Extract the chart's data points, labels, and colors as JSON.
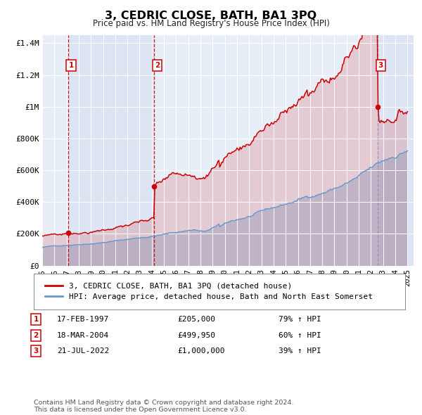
{
  "title": "3, CEDRIC CLOSE, BATH, BA1 3PQ",
  "subtitle": "Price paid vs. HM Land Registry's House Price Index (HPI)",
  "xlim": [
    1995.0,
    2025.5
  ],
  "ylim": [
    0,
    1450000
  ],
  "yticks": [
    0,
    200000,
    400000,
    600000,
    800000,
    1000000,
    1200000,
    1400000
  ],
  "ytick_labels": [
    "£0",
    "£200K",
    "£400K",
    "£600K",
    "£800K",
    "£1M",
    "£1.2M",
    "£1.4M"
  ],
  "purchases": [
    {
      "num": 1,
      "year": 1997.12,
      "price": 205000,
      "date_str": "17-FEB-1997",
      "price_str": "£205,000",
      "pct": "79%"
    },
    {
      "num": 2,
      "year": 2004.21,
      "price": 499950,
      "date_str": "18-MAR-2004",
      "price_str": "£499,950",
      "pct": "60%"
    },
    {
      "num": 3,
      "year": 2022.55,
      "price": 1000000,
      "date_str": "21-JUL-2022",
      "price_str": "£1,000,000",
      "pct": "39%"
    }
  ],
  "property_color": "#cc0000",
  "hpi_color": "#6699cc",
  "background_color": "#e8eef8",
  "grid_color": "#ffffff",
  "vline_color": "#cc0000",
  "vline_color3": "#8899bb",
  "legend_property": "3, CEDRIC CLOSE, BATH, BA1 3PQ (detached house)",
  "legend_hpi": "HPI: Average price, detached house, Bath and North East Somerset",
  "footnote": "Contains HM Land Registry data © Crown copyright and database right 2024.\nThis data is licensed under the Open Government Licence v3.0."
}
